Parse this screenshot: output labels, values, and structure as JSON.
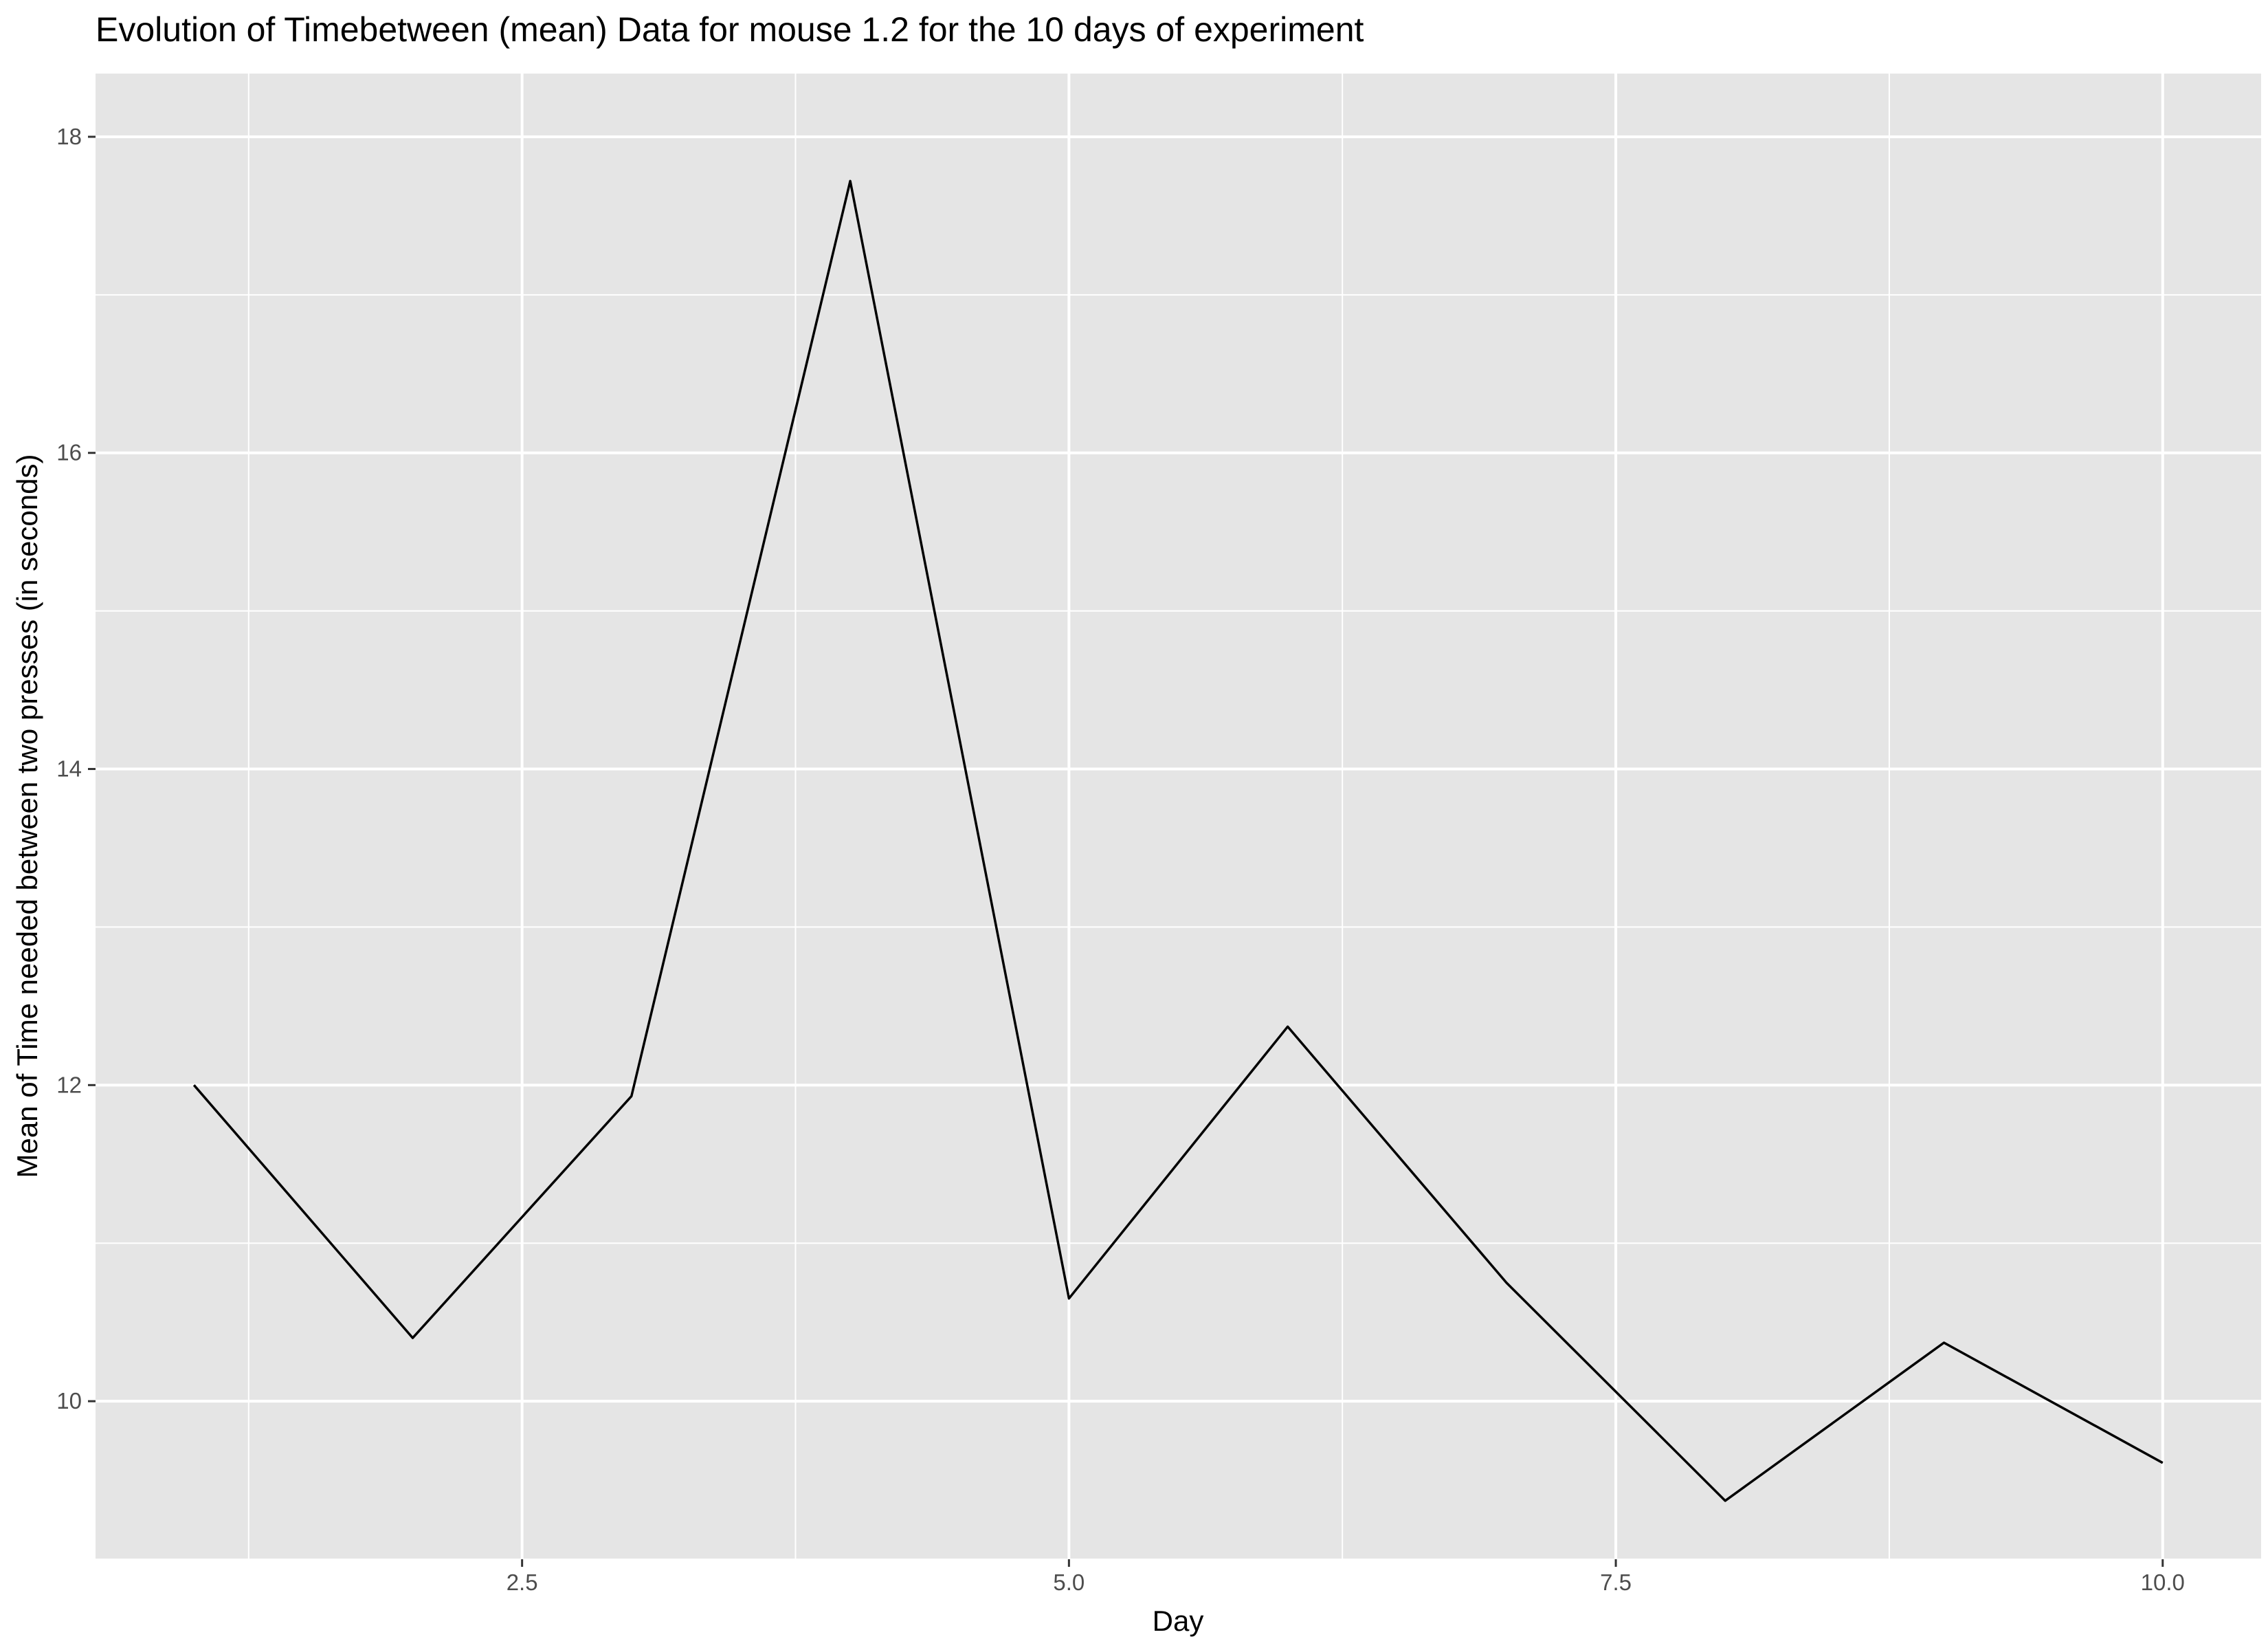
{
  "chart_data": {
    "type": "line",
    "title": "Evolution of Timebetween (mean) Data for mouse 1.2 for the 10 days of experiment",
    "xlabel": "Day",
    "ylabel": "Mean of Time needed between two presses (in seconds)",
    "x": [
      1,
      2,
      3,
      4,
      5,
      6,
      7,
      8,
      9,
      10
    ],
    "series": [
      {
        "values": [
          12.0,
          10.4,
          11.93,
          17.72,
          10.65,
          12.37,
          10.75,
          9.37,
          10.37,
          9.61
        ]
      }
    ],
    "xlim": [
      0.55,
      10.45
    ],
    "ylim": [
      9.0,
      18.4
    ],
    "x_ticks": [
      2.5,
      5.0,
      7.5,
      10.0
    ],
    "x_tick_labels": [
      "2.5",
      "5.0",
      "7.5",
      "10.0"
    ],
    "y_ticks": [
      10,
      12,
      14,
      16,
      18
    ],
    "y_tick_labels": [
      "10",
      "12",
      "14",
      "16",
      "18"
    ],
    "grid": true,
    "legend": "none",
    "colors": {
      "panel": "#e5e5e5",
      "grid": "#ffffff",
      "line": "#000000",
      "tick_text": "#4d4d4d"
    }
  }
}
